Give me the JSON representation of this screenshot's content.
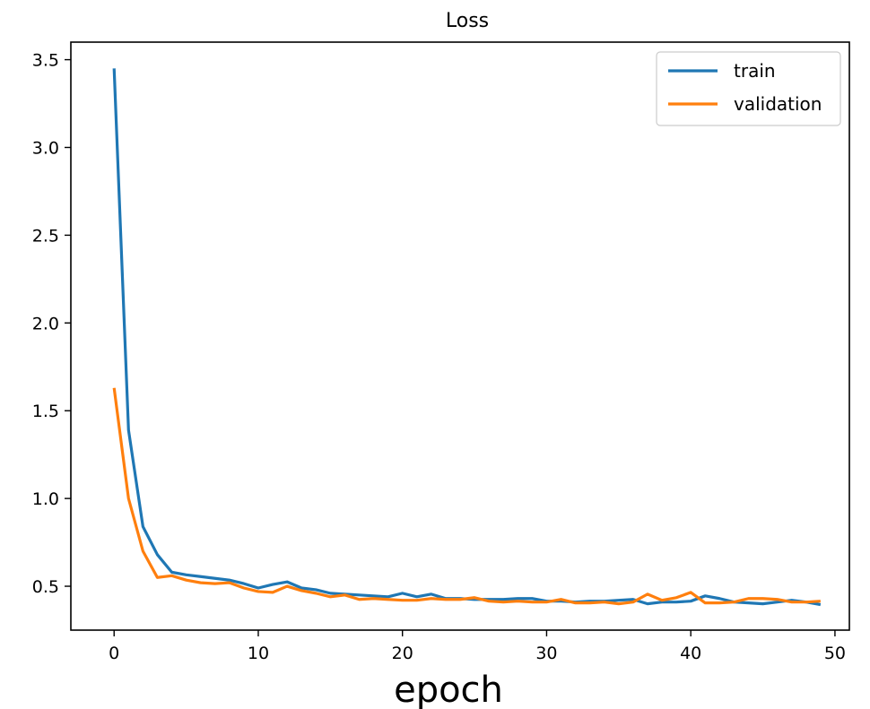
{
  "chart_data": {
    "type": "line",
    "title": "Loss",
    "xlabel": "epoch",
    "ylabel": "",
    "xlim": [
      -3,
      51
    ],
    "ylim": [
      0.25,
      3.6
    ],
    "xticks": [
      0,
      10,
      20,
      30,
      40,
      50
    ],
    "yticks": [
      0.5,
      1.0,
      1.5,
      2.0,
      2.5,
      3.0,
      3.5
    ],
    "xtick_labels": [
      "0",
      "10",
      "20",
      "30",
      "40",
      "50"
    ],
    "ytick_labels": [
      "0.5",
      "1.0",
      "1.5",
      "2.0",
      "2.5",
      "3.0",
      "3.5"
    ],
    "grid": false,
    "legend_position": "top-right",
    "x": [
      0,
      1,
      2,
      3,
      4,
      5,
      6,
      7,
      8,
      9,
      10,
      11,
      12,
      13,
      14,
      15,
      16,
      17,
      18,
      19,
      20,
      21,
      22,
      23,
      24,
      25,
      26,
      27,
      28,
      29,
      30,
      31,
      32,
      33,
      34,
      35,
      36,
      37,
      38,
      39,
      40,
      41,
      42,
      43,
      44,
      45,
      46,
      47,
      48,
      49
    ],
    "series": [
      {
        "name": "train",
        "color": "#1f77b4",
        "values": [
          3.45,
          1.39,
          0.84,
          0.68,
          0.58,
          0.565,
          0.555,
          0.545,
          0.535,
          0.515,
          0.49,
          0.51,
          0.525,
          0.49,
          0.48,
          0.46,
          0.455,
          0.45,
          0.445,
          0.44,
          0.46,
          0.44,
          0.455,
          0.43,
          0.43,
          0.425,
          0.425,
          0.425,
          0.43,
          0.43,
          0.415,
          0.415,
          0.41,
          0.415,
          0.415,
          0.42,
          0.425,
          0.4,
          0.41,
          0.41,
          0.415,
          0.445,
          0.43,
          0.41,
          0.405,
          0.4,
          0.41,
          0.42,
          0.41,
          0.395
        ]
      },
      {
        "name": "validation",
        "color": "#ff7f0e",
        "values": [
          1.63,
          1.0,
          0.7,
          0.55,
          0.56,
          0.535,
          0.52,
          0.515,
          0.52,
          0.49,
          0.47,
          0.465,
          0.5,
          0.475,
          0.46,
          0.44,
          0.45,
          0.425,
          0.43,
          0.425,
          0.42,
          0.42,
          0.43,
          0.425,
          0.425,
          0.435,
          0.415,
          0.41,
          0.415,
          0.41,
          0.41,
          0.425,
          0.405,
          0.405,
          0.41,
          0.4,
          0.41,
          0.455,
          0.42,
          0.435,
          0.465,
          0.405,
          0.405,
          0.41,
          0.43,
          0.43,
          0.425,
          0.41,
          0.41,
          0.415
        ]
      }
    ]
  }
}
